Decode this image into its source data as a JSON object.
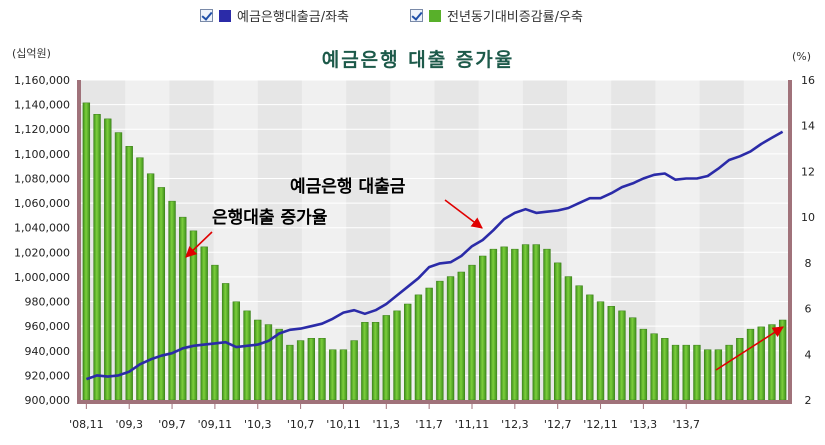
{
  "legend": {
    "items": [
      {
        "label": "예금은행대출금/좌축",
        "color": "#2b2ba8",
        "checked": true
      },
      {
        "label": "전년동기대비증감률/우축",
        "color": "#58b02a",
        "checked": true
      }
    ]
  },
  "chart_data": {
    "type": "bar",
    "title": "예금은행 대출 증가율",
    "left_unit": "(십억원)",
    "right_unit": "(%)",
    "ylim_left": [
      900000,
      1160000
    ],
    "ylim_right": [
      2,
      16
    ],
    "left_ticks": [
      "900,000",
      "920,000",
      "940,000",
      "960,000",
      "980,000",
      "1,000,000",
      "1,020,000",
      "1,040,000",
      "1,060,000",
      "1,080,000",
      "1,100,000",
      "1,120,000",
      "1,140,000",
      "1,160,000"
    ],
    "right_ticks": [
      "2",
      "4",
      "6",
      "8",
      "10",
      "12",
      "14",
      "16"
    ],
    "x_ticks": [
      "'08,11",
      "'09,3",
      "'09,7",
      "'09,11",
      "'10,3",
      "'10,7",
      "'10,11",
      "'11,3",
      "'11,7",
      "'11,11",
      "'12,3",
      "'12,7",
      "'12,11",
      "'13,3",
      "'13,7"
    ],
    "annotations": [
      "예금은행 대출금",
      "은행대출 증가율"
    ],
    "series": [
      {
        "name": "예금은행대출금/좌축",
        "axis": "left",
        "type": "line",
        "color": "#2b2ba8",
        "values": [
          917000,
          920000,
          919000,
          920000,
          923000,
          929000,
          933000,
          936000,
          938000,
          942000,
          944000,
          945000,
          946000,
          947000,
          943000,
          944000,
          945000,
          948000,
          954000,
          957000,
          958000,
          960000,
          962000,
          966000,
          971000,
          973000,
          970000,
          973000,
          978000,
          985000,
          992000,
          999000,
          1008000,
          1011000,
          1012000,
          1017000,
          1025000,
          1030000,
          1038000,
          1047000,
          1052000,
          1055000,
          1052000,
          1053000,
          1054000,
          1056000,
          1060000,
          1064000,
          1064000,
          1068000,
          1073000,
          1076000,
          1080000,
          1083000,
          1084000,
          1079000,
          1080000,
          1080000,
          1082000,
          1088000,
          1095000,
          1098000,
          1102000,
          1108000,
          1113000,
          1118000
        ]
      },
      {
        "name": "전년동기대비증감률/우축",
        "axis": "right",
        "type": "bar",
        "color": "#58b02a",
        "values": [
          15.0,
          14.5,
          14.3,
          13.7,
          13.1,
          12.6,
          11.9,
          11.3,
          10.7,
          10.0,
          9.4,
          8.7,
          7.9,
          7.1,
          6.3,
          5.9,
          5.5,
          5.3,
          5.1,
          4.4,
          4.6,
          4.7,
          4.7,
          4.2,
          4.2,
          4.6,
          5.4,
          5.4,
          5.7,
          5.9,
          6.2,
          6.6,
          6.9,
          7.2,
          7.4,
          7.6,
          7.9,
          8.3,
          8.6,
          8.7,
          8.6,
          8.8,
          8.8,
          8.6,
          8.0,
          7.4,
          7.0,
          6.6,
          6.3,
          6.1,
          5.9,
          5.6,
          5.1,
          4.9,
          4.7,
          4.4,
          4.4,
          4.4,
          4.2,
          4.2,
          4.4,
          4.7,
          5.1,
          5.2,
          5.3,
          5.5
        ]
      }
    ]
  }
}
